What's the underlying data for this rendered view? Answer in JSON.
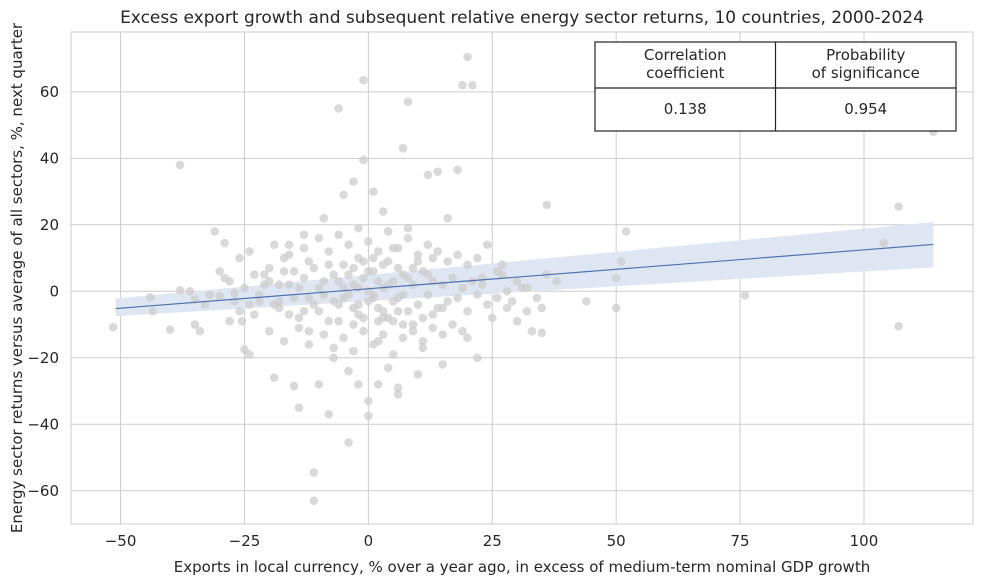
{
  "chart_data": {
    "type": "scatter",
    "title": "Excess export growth and subsequent relative energy sector returns, 10 countries, 2000-2024",
    "xlabel": "Exports in local currency, % over a year ago, in excess of medium-term nominal GDP growth",
    "ylabel": "Energy sector returns versus average of all sectors, %, next quarter",
    "xlim": [
      -60,
      122
    ],
    "ylim": [
      -70,
      78
    ],
    "xticks": [
      -50,
      -25,
      0,
      25,
      50,
      75,
      100
    ],
    "yticks": [
      -60,
      -40,
      -20,
      0,
      20,
      40,
      60
    ],
    "xtick_labels": [
      "−50",
      "−25",
      "0",
      "25",
      "50",
      "75",
      "100"
    ],
    "ytick_labels": [
      "−60",
      "−40",
      "−20",
      "0",
      "20",
      "40",
      "60"
    ],
    "grid": true,
    "colors": {
      "points": "#cccccc",
      "fit_line": "#4c72b0",
      "confidence_band": "#dfe6f3",
      "grid": "#cccccc"
    },
    "regression": {
      "x": [
        -51,
        114
      ],
      "y": [
        -5.2,
        14.1
      ],
      "ci_lower": [
        -7.5,
        7.2
      ],
      "ci_upper": [
        -2.2,
        20.8
      ]
    },
    "table": {
      "headers": [
        "Correlation\ncoefficient",
        "Probability\nof significance"
      ],
      "values": [
        "0.138",
        "0.954"
      ]
    },
    "points": [
      [
        -51.5,
        -10.8
      ],
      [
        -44,
        -1.8
      ],
      [
        -43.5,
        -6
      ],
      [
        -40,
        -11.5
      ],
      [
        -38,
        38
      ],
      [
        -38,
        0.3
      ],
      [
        -36,
        0
      ],
      [
        -35,
        -2.5
      ],
      [
        -35,
        -10
      ],
      [
        -34,
        -12
      ],
      [
        -33,
        -4
      ],
      [
        -32,
        -1
      ],
      [
        -31,
        18
      ],
      [
        -30,
        -1.5
      ],
      [
        -29,
        14.5
      ],
      [
        -28,
        3
      ],
      [
        -27,
        -0.5
      ],
      [
        -26,
        -6
      ],
      [
        -25.5,
        -9
      ],
      [
        -25,
        -17.5
      ],
      [
        -24,
        -19
      ],
      [
        -24,
        12
      ],
      [
        -23,
        5
      ],
      [
        -22,
        -3
      ],
      [
        -21,
        2
      ],
      [
        -20,
        7
      ],
      [
        -19,
        -26
      ],
      [
        -18,
        -3
      ],
      [
        -17,
        10
      ],
      [
        -16,
        14
      ],
      [
        -15,
        -28.5
      ],
      [
        -14,
        -35
      ],
      [
        -13,
        17
      ],
      [
        -12,
        -12
      ],
      [
        -11,
        -54.5
      ],
      [
        -11,
        -63
      ],
      [
        -10,
        1
      ],
      [
        -10,
        -28
      ],
      [
        -9,
        22
      ],
      [
        -8,
        -37
      ],
      [
        -7,
        -20
      ],
      [
        -6,
        55
      ],
      [
        -5,
        29
      ],
      [
        -4,
        -45.5
      ],
      [
        -4,
        -24
      ],
      [
        -3,
        33
      ],
      [
        -3,
        -10
      ],
      [
        -2,
        -28
      ],
      [
        -2,
        10
      ],
      [
        -1,
        63.5
      ],
      [
        -1,
        39.5
      ],
      [
        0,
        -37.5
      ],
      [
        0,
        -33
      ],
      [
        1,
        30
      ],
      [
        1,
        -2
      ],
      [
        2,
        -28
      ],
      [
        2,
        -15
      ],
      [
        3,
        24
      ],
      [
        3,
        -8
      ],
      [
        4,
        -23
      ],
      [
        5,
        13
      ],
      [
        6,
        -29
      ],
      [
        6,
        -31
      ],
      [
        7,
        43
      ],
      [
        8,
        57
      ],
      [
        8,
        19
      ],
      [
        9,
        -10
      ],
      [
        10,
        -25
      ],
      [
        11,
        -17
      ],
      [
        12,
        35
      ],
      [
        13,
        10
      ],
      [
        14,
        36
      ],
      [
        15,
        -5
      ],
      [
        15,
        -22
      ],
      [
        16,
        22
      ],
      [
        18,
        36.5
      ],
      [
        19,
        62
      ],
      [
        20,
        70.5
      ],
      [
        20,
        -14
      ],
      [
        21,
        62
      ],
      [
        22,
        -20
      ],
      [
        23,
        4
      ],
      [
        24,
        14
      ],
      [
        26,
        -2
      ],
      [
        27,
        5
      ],
      [
        28,
        0
      ],
      [
        29,
        -3
      ],
      [
        30,
        -9
      ],
      [
        31,
        1
      ],
      [
        32,
        -6
      ],
      [
        33,
        -12
      ],
      [
        34,
        -2
      ],
      [
        35,
        -12.5
      ],
      [
        35,
        -5
      ],
      [
        36,
        26
      ],
      [
        36,
        5
      ],
      [
        38,
        3
      ],
      [
        44,
        -3
      ],
      [
        50,
        4
      ],
      [
        50,
        -5
      ],
      [
        51,
        9
      ],
      [
        52,
        18
      ],
      [
        76,
        -1.2
      ],
      [
        104,
        14.5
      ],
      [
        107,
        -10.5
      ],
      [
        107,
        25.5
      ],
      [
        114,
        48
      ],
      [
        -22,
        -1
      ],
      [
        -20,
        3
      ],
      [
        -18,
        -5
      ],
      [
        -16,
        2
      ],
      [
        -15,
        6
      ],
      [
        -14,
        -8
      ],
      [
        -13,
        4
      ],
      [
        -12,
        -2
      ],
      [
        -11,
        7
      ],
      [
        -10,
        -6
      ],
      [
        -9,
        3
      ],
      [
        -8,
        -9
      ],
      [
        -7,
        5
      ],
      [
        -6,
        -4
      ],
      [
        -5,
        8
      ],
      [
        -4,
        -1
      ],
      [
        -3,
        2
      ],
      [
        -2,
        -7
      ],
      [
        -1,
        4
      ],
      [
        0,
        -3
      ],
      [
        1,
        6
      ],
      [
        2,
        -5
      ],
      [
        3,
        1
      ],
      [
        4,
        -8
      ],
      [
        5,
        3
      ],
      [
        6,
        -2
      ],
      [
        7,
        5
      ],
      [
        8,
        -6
      ],
      [
        9,
        2
      ],
      [
        10,
        -4
      ],
      [
        11,
        6
      ],
      [
        12,
        -1
      ],
      [
        13,
        3
      ],
      [
        14,
        -5
      ],
      [
        15,
        2
      ],
      [
        16,
        -3
      ],
      [
        17,
        4
      ],
      [
        18,
        -2
      ],
      [
        19,
        1
      ],
      [
        20,
        -6
      ],
      [
        21,
        3
      ],
      [
        22,
        -1
      ],
      [
        23,
        2
      ],
      [
        24,
        -4
      ],
      [
        -20,
        -12
      ],
      [
        -17,
        -15
      ],
      [
        -14,
        -11
      ],
      [
        -12,
        -16
      ],
      [
        -9,
        -13
      ],
      [
        -7,
        -17
      ],
      [
        -5,
        -14
      ],
      [
        -3,
        -18
      ],
      [
        -1,
        -12
      ],
      [
        1,
        -16
      ],
      [
        3,
        -13
      ],
      [
        5,
        -19
      ],
      [
        7,
        -14
      ],
      [
        9,
        -12
      ],
      [
        11,
        -15
      ],
      [
        13,
        -11
      ],
      [
        15,
        -13
      ],
      [
        17,
        -10
      ],
      [
        19,
        -12
      ],
      [
        -19,
        14
      ],
      [
        -16,
        11
      ],
      [
        -13,
        13
      ],
      [
        -10,
        16
      ],
      [
        -8,
        12
      ],
      [
        -6,
        17
      ],
      [
        -4,
        14
      ],
      [
        -2,
        19
      ],
      [
        0,
        15
      ],
      [
        2,
        12
      ],
      [
        4,
        18
      ],
      [
        6,
        13
      ],
      [
        8,
        16
      ],
      [
        10,
        11
      ],
      [
        12,
        14
      ],
      [
        14,
        12
      ],
      [
        16,
        9
      ],
      [
        18,
        11
      ],
      [
        20,
        8
      ],
      [
        22,
        10
      ],
      [
        -6,
        3
      ],
      [
        -5,
        -2
      ],
      [
        -4,
        5
      ],
      [
        -3,
        -5
      ],
      [
        -2,
        1
      ],
      [
        -1,
        -8
      ],
      [
        0,
        6
      ],
      [
        1,
        -1
      ],
      [
        2,
        3
      ],
      [
        3,
        -6
      ],
      [
        4,
        2
      ],
      [
        5,
        -3
      ],
      [
        6,
        7
      ],
      [
        7,
        -1
      ],
      [
        8,
        4
      ],
      [
        -7,
        -3
      ],
      [
        -6,
        -9
      ],
      [
        -5,
        1
      ],
      [
        -3,
        7
      ],
      [
        -1,
        9
      ],
      [
        1,
        10
      ],
      [
        3,
        8
      ],
      [
        5,
        -9
      ],
      [
        7,
        -10
      ],
      [
        9,
        7
      ],
      [
        0,
        0
      ],
      [
        -2,
        -4
      ],
      [
        2,
        -9
      ],
      [
        4,
        9
      ],
      [
        6,
        -6
      ],
      [
        -8,
        8
      ],
      [
        -9,
        -1
      ],
      [
        -11,
        -4
      ],
      [
        10,
        9
      ],
      [
        11,
        -8
      ],
      [
        12,
        5
      ],
      [
        13,
        -7
      ],
      [
        -12,
        9
      ],
      [
        -13,
        -6
      ],
      [
        -14,
        1
      ],
      [
        -15,
        -2
      ],
      [
        -16,
        -7
      ],
      [
        -17,
        6
      ],
      [
        -18,
        2
      ],
      [
        -19,
        -4
      ],
      [
        -21,
        5
      ],
      [
        -23,
        -7
      ],
      [
        -25,
        1
      ],
      [
        -27,
        -3
      ],
      [
        -29,
        4
      ],
      [
        26,
        6
      ],
      [
        28,
        -5
      ],
      [
        30,
        3
      ],
      [
        32,
        1
      ],
      [
        25,
        -8
      ],
      [
        27,
        8
      ],
      [
        -26,
        10
      ],
      [
        -24,
        -4
      ],
      [
        -28,
        -9
      ],
      [
        -30,
        6
      ]
    ]
  }
}
